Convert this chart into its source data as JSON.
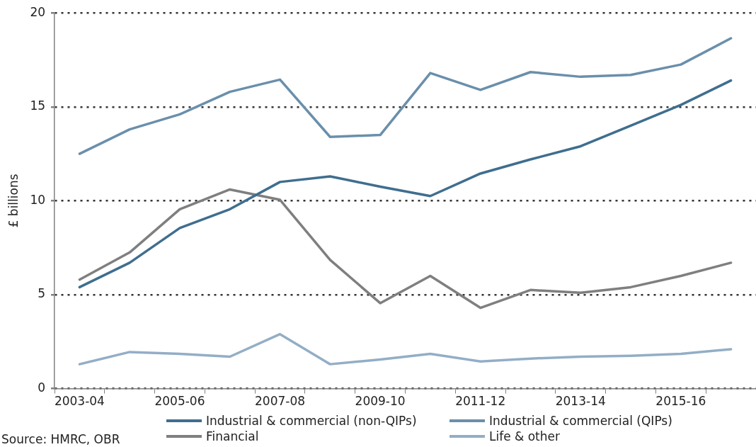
{
  "chart_data": {
    "type": "line",
    "ylabel": "£ billions",
    "categories": [
      "2003-04",
      null,
      "2005-06",
      null,
      "2007-08",
      null,
      "2009-10",
      null,
      "2011-12",
      null,
      "2013-14",
      null,
      "2015-16",
      null
    ],
    "series": [
      {
        "name": "Industrial & commercial (non-QIPs)",
        "color": "#3f6e8f",
        "values": [
          5.4,
          6.7,
          8.55,
          9.55,
          11.0,
          11.3,
          10.75,
          10.25,
          11.45,
          12.2,
          12.9,
          14.0,
          15.1,
          16.4
        ]
      },
      {
        "name": "Industrial & commercial (QIPs)",
        "color": "#6a8fab",
        "values": [
          12.5,
          13.8,
          14.6,
          15.8,
          16.45,
          13.4,
          13.5,
          16.8,
          15.9,
          16.85,
          16.6,
          16.7,
          17.25,
          18.65
        ]
      },
      {
        "name": "Financial",
        "color": "#7f7f7f",
        "values": [
          5.8,
          7.25,
          9.55,
          10.6,
          10.05,
          6.85,
          4.55,
          6.0,
          4.3,
          5.25,
          5.1,
          5.4,
          6.0,
          6.7
        ]
      },
      {
        "name": "Life & other",
        "color": "#93aec6",
        "values": [
          1.3,
          1.95,
          1.85,
          1.7,
          2.9,
          1.3,
          1.55,
          1.85,
          1.45,
          1.6,
          1.7,
          1.75,
          1.85,
          2.1
        ]
      }
    ],
    "ylim": [
      0,
      20
    ],
    "yticks": [
      0,
      5,
      10,
      15,
      20
    ],
    "grid": "y",
    "legend": "bottom",
    "marker": "none",
    "line_style": "solid",
    "annotations": [
      "Source: HMRC, OBR"
    ]
  }
}
